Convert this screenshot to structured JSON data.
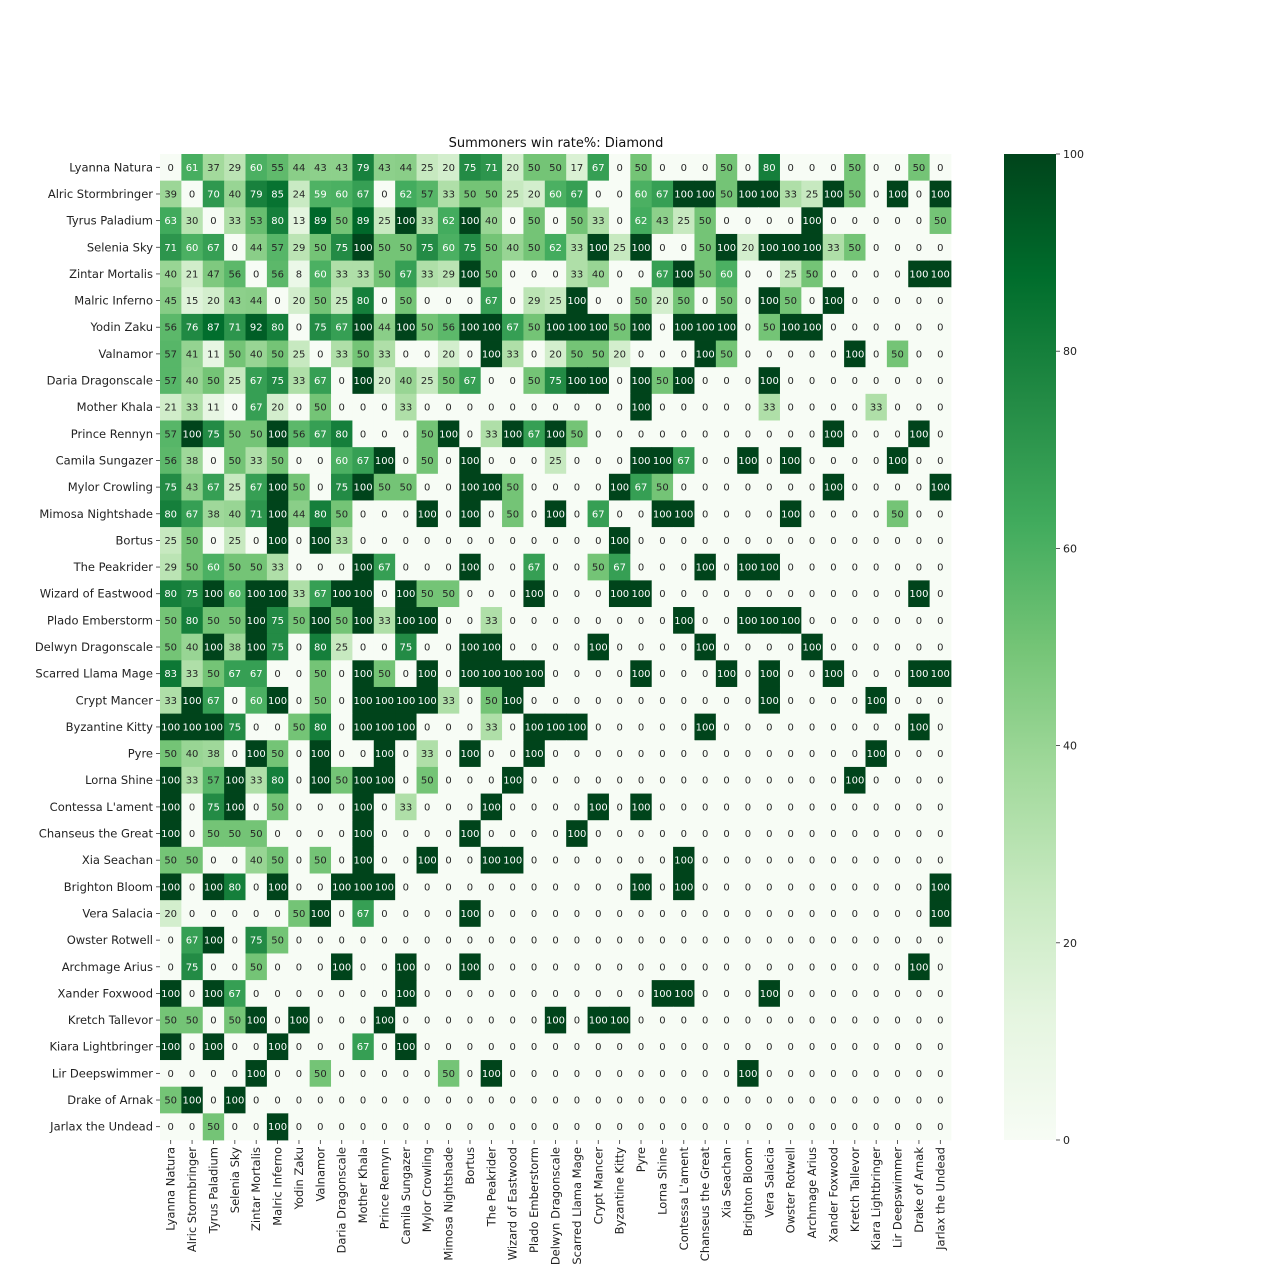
{
  "chart_data": {
    "type": "heatmap",
    "title": "Summoners win rate%: Diamond",
    "xlabel": "",
    "ylabel": "",
    "color_scale": {
      "min": 0,
      "max": 100,
      "low_color": "#f7fcf5",
      "high_color": "#00441b",
      "ticks": [
        0,
        20,
        40,
        60,
        80,
        100
      ]
    },
    "labels": [
      "Lyanna Natura",
      "Alric Stormbringer",
      "Tyrus Paladium",
      "Selenia Sky",
      "Zintar Mortalis",
      "Malric Inferno",
      "Yodin Zaku",
      "Valnamor",
      "Daria Dragonscale",
      "Mother Khala",
      "Prince Rennyn",
      "Camila Sungazer",
      "Mylor Crowling",
      "Mimosa Nightshade",
      "Bortus",
      "The Peakrider",
      "Wizard of Eastwood",
      "Plado Emberstorm",
      "Delwyn Dragonscale",
      "Scarred Llama Mage",
      "Crypt Mancer",
      "Byzantine Kitty",
      "Pyre",
      "Lorna Shine",
      "Contessa L'ament",
      "Chanseus the Great",
      "Xia Seachan",
      "Brighton Bloom",
      "Vera Salacia",
      "Owster Rotwell",
      "Archmage Arius",
      "Xander Foxwood",
      "Kretch Tallevor",
      "Kiara Lightbringer",
      "Lir Deepswimmer",
      "Drake of Arnak",
      "Jarlax the Undead"
    ],
    "values": [
      [
        0,
        61,
        37,
        29,
        60,
        55,
        44,
        43,
        43,
        79,
        43,
        44,
        25,
        20,
        75,
        71,
        20,
        50,
        50,
        17,
        67,
        0,
        50,
        0,
        0,
        0,
        50,
        0,
        80,
        0,
        0,
        0,
        50,
        0,
        0,
        50,
        0
      ],
      [
        39,
        0,
        70,
        40,
        79,
        85,
        24,
        59,
        60,
        67,
        0,
        62,
        57,
        33,
        50,
        50,
        25,
        20,
        60,
        67,
        0,
        0,
        60,
        67,
        100,
        100,
        50,
        100,
        100,
        33,
        25,
        100,
        50,
        0,
        100,
        0,
        100
      ],
      [
        63,
        30,
        0,
        33,
        53,
        80,
        13,
        89,
        50,
        89,
        25,
        100,
        33,
        62,
        100,
        40,
        0,
        50,
        0,
        50,
        33,
        0,
        62,
        43,
        25,
        50,
        0,
        0,
        0,
        0,
        100,
        0,
        0,
        0,
        0,
        0,
        50
      ],
      [
        71,
        60,
        67,
        0,
        44,
        57,
        29,
        50,
        75,
        100,
        50,
        50,
        75,
        60,
        75,
        50,
        40,
        50,
        62,
        33,
        100,
        25,
        100,
        0,
        0,
        50,
        100,
        20,
        100,
        100,
        100,
        33,
        50,
        0,
        0,
        0,
        0
      ],
      [
        40,
        21,
        47,
        56,
        0,
        56,
        8,
        60,
        33,
        33,
        50,
        67,
        33,
        29,
        100,
        50,
        0,
        0,
        0,
        33,
        40,
        0,
        0,
        67,
        100,
        50,
        60,
        0,
        0,
        25,
        50,
        0,
        0,
        0,
        0,
        100,
        100
      ],
      [
        45,
        15,
        20,
        43,
        44,
        0,
        20,
        50,
        25,
        80,
        0,
        50,
        0,
        0,
        0,
        67,
        0,
        29,
        25,
        100,
        0,
        0,
        50,
        20,
        50,
        0,
        50,
        0,
        100,
        50,
        0,
        100,
        0,
        0,
        0,
        0,
        0
      ],
      [
        56,
        76,
        87,
        71,
        92,
        80,
        0,
        75,
        67,
        100,
        44,
        100,
        50,
        56,
        100,
        100,
        67,
        50,
        100,
        100,
        100,
        50,
        100,
        0,
        100,
        100,
        100,
        0,
        50,
        100,
        100,
        0,
        0,
        0,
        0,
        0,
        0
      ],
      [
        57,
        41,
        11,
        50,
        40,
        50,
        25,
        0,
        33,
        50,
        33,
        0,
        0,
        20,
        0,
        100,
        33,
        0,
        20,
        50,
        50,
        20,
        0,
        0,
        0,
        100,
        50,
        0,
        0,
        0,
        0,
        0,
        100,
        0,
        50,
        0,
        0
      ],
      [
        57,
        40,
        50,
        25,
        67,
        75,
        33,
        67,
        0,
        100,
        20,
        40,
        25,
        50,
        67,
        0,
        0,
        50,
        75,
        100,
        100,
        0,
        100,
        50,
        100,
        0,
        0,
        0,
        100,
        0,
        0,
        0,
        0,
        0,
        0,
        0,
        0
      ],
      [
        21,
        33,
        11,
        0,
        67,
        20,
        0,
        50,
        0,
        0,
        0,
        33,
        0,
        0,
        0,
        0,
        0,
        0,
        0,
        0,
        0,
        0,
        100,
        0,
        0,
        0,
        0,
        0,
        33,
        0,
        0,
        0,
        0,
        33,
        0,
        0,
        0
      ],
      [
        57,
        100,
        75,
        50,
        50,
        100,
        56,
        67,
        80,
        0,
        0,
        0,
        50,
        100,
        0,
        33,
        100,
        67,
        100,
        50,
        0,
        0,
        0,
        0,
        0,
        0,
        0,
        0,
        0,
        0,
        0,
        100,
        0,
        0,
        0,
        100,
        0
      ],
      [
        56,
        38,
        0,
        50,
        33,
        50,
        0,
        0,
        60,
        67,
        100,
        0,
        50,
        0,
        100,
        0,
        0,
        0,
        25,
        0,
        0,
        0,
        100,
        100,
        67,
        0,
        0,
        100,
        0,
        100,
        0,
        0,
        0,
        0,
        100,
        0,
        0
      ],
      [
        75,
        43,
        67,
        25,
        67,
        100,
        50,
        0,
        75,
        100,
        50,
        50,
        0,
        0,
        100,
        100,
        50,
        0,
        0,
        0,
        0,
        100,
        67,
        50,
        0,
        0,
        0,
        0,
        0,
        0,
        0,
        100,
        0,
        0,
        0,
        0,
        100
      ],
      [
        80,
        67,
        38,
        40,
        71,
        100,
        44,
        80,
        50,
        0,
        0,
        0,
        100,
        0,
        100,
        0,
        50,
        0,
        100,
        0,
        67,
        0,
        0,
        100,
        100,
        0,
        0,
        0,
        0,
        100,
        0,
        0,
        0,
        0,
        50,
        0,
        0
      ],
      [
        25,
        50,
        0,
        25,
        0,
        100,
        0,
        100,
        33,
        0,
        0,
        0,
        0,
        0,
        0,
        0,
        0,
        0,
        0,
        0,
        0,
        100,
        0,
        0,
        0,
        0,
        0,
        0,
        0,
        0,
        0,
        0,
        0,
        0,
        0,
        0,
        0
      ],
      [
        29,
        50,
        60,
        50,
        50,
        33,
        0,
        0,
        0,
        100,
        67,
        0,
        0,
        0,
        100,
        0,
        0,
        67,
        0,
        0,
        50,
        67,
        0,
        0,
        0,
        100,
        0,
        100,
        100,
        0,
        0,
        0,
        0,
        0,
        0,
        0,
        0
      ],
      [
        80,
        75,
        100,
        60,
        100,
        100,
        33,
        67,
        100,
        100,
        0,
        100,
        50,
        50,
        0,
        0,
        0,
        100,
        0,
        0,
        0,
        100,
        100,
        0,
        0,
        0,
        0,
        0,
        0,
        0,
        0,
        0,
        0,
        0,
        0,
        100,
        0
      ],
      [
        50,
        80,
        50,
        50,
        100,
        75,
        50,
        100,
        50,
        100,
        33,
        100,
        100,
        0,
        0,
        33,
        0,
        0,
        0,
        0,
        0,
        0,
        0,
        0,
        100,
        0,
        0,
        100,
        100,
        100,
        0,
        0,
        0,
        0,
        0,
        0,
        0
      ],
      [
        50,
        40,
        100,
        38,
        100,
        75,
        0,
        80,
        25,
        0,
        0,
        75,
        0,
        0,
        100,
        100,
        0,
        0,
        0,
        0,
        100,
        0,
        0,
        0,
        0,
        100,
        0,
        0,
        0,
        0,
        100,
        0,
        0,
        0,
        0,
        0,
        0
      ],
      [
        83,
        33,
        50,
        67,
        67,
        0,
        0,
        50,
        0,
        100,
        50,
        0,
        100,
        0,
        100,
        100,
        100,
        100,
        0,
        0,
        0,
        0,
        100,
        0,
        0,
        0,
        100,
        0,
        100,
        0,
        0,
        100,
        0,
        0,
        0,
        100,
        100
      ],
      [
        33,
        100,
        67,
        0,
        60,
        100,
        0,
        50,
        0,
        100,
        100,
        100,
        100,
        33,
        0,
        50,
        100,
        0,
        0,
        0,
        0,
        0,
        0,
        0,
        0,
        0,
        0,
        0,
        100,
        0,
        0,
        0,
        0,
        100,
        0,
        0,
        0
      ],
      [
        100,
        100,
        100,
        75,
        0,
        0,
        50,
        80,
        0,
        100,
        100,
        100,
        0,
        0,
        0,
        33,
        0,
        100,
        100,
        100,
        0,
        0,
        0,
        0,
        0,
        100,
        0,
        0,
        0,
        0,
        0,
        0,
        0,
        0,
        0,
        100,
        0
      ],
      [
        50,
        40,
        38,
        0,
        100,
        50,
        0,
        100,
        0,
        0,
        100,
        0,
        33,
        0,
        100,
        0,
        0,
        100,
        0,
        0,
        0,
        0,
        0,
        0,
        0,
        0,
        0,
        0,
        0,
        0,
        0,
        0,
        0,
        100,
        0,
        0,
        0
      ],
      [
        100,
        33,
        57,
        100,
        33,
        80,
        0,
        100,
        50,
        100,
        100,
        0,
        50,
        0,
        0,
        0,
        100,
        0,
        0,
        0,
        0,
        0,
        0,
        0,
        0,
        0,
        0,
        0,
        0,
        0,
        0,
        0,
        100,
        0,
        0,
        0,
        0
      ],
      [
        100,
        0,
        75,
        100,
        0,
        50,
        0,
        0,
        0,
        100,
        0,
        33,
        0,
        0,
        0,
        100,
        0,
        0,
        0,
        0,
        100,
        0,
        100,
        0,
        0,
        0,
        0,
        0,
        0,
        0,
        0,
        0,
        0,
        0,
        0,
        0,
        0
      ],
      [
        100,
        0,
        50,
        50,
        50,
        0,
        0,
        0,
        0,
        100,
        0,
        0,
        0,
        0,
        100,
        0,
        0,
        0,
        0,
        100,
        0,
        0,
        0,
        0,
        0,
        0,
        0,
        0,
        0,
        0,
        0,
        0,
        0,
        0,
        0,
        0,
        0
      ],
      [
        50,
        50,
        0,
        0,
        40,
        50,
        0,
        50,
        0,
        100,
        0,
        0,
        100,
        0,
        0,
        100,
        100,
        0,
        0,
        0,
        0,
        0,
        0,
        0,
        100,
        0,
        0,
        0,
        0,
        0,
        0,
        0,
        0,
        0,
        0,
        0,
        0
      ],
      [
        100,
        0,
        100,
        80,
        0,
        100,
        0,
        0,
        100,
        100,
        100,
        0,
        0,
        0,
        0,
        0,
        0,
        0,
        0,
        0,
        0,
        0,
        100,
        0,
        100,
        0,
        0,
        0,
        0,
        0,
        0,
        0,
        0,
        0,
        0,
        0,
        100
      ],
      [
        20,
        0,
        0,
        0,
        0,
        0,
        50,
        100,
        0,
        67,
        0,
        0,
        0,
        0,
        100,
        0,
        0,
        0,
        0,
        0,
        0,
        0,
        0,
        0,
        0,
        0,
        0,
        0,
        0,
        0,
        0,
        0,
        0,
        0,
        0,
        0,
        100
      ],
      [
        0,
        67,
        100,
        0,
        75,
        50,
        0,
        0,
        0,
        0,
        0,
        0,
        0,
        0,
        0,
        0,
        0,
        0,
        0,
        0,
        0,
        0,
        0,
        0,
        0,
        0,
        0,
        0,
        0,
        0,
        0,
        0,
        0,
        0,
        0,
        0,
        0
      ],
      [
        0,
        75,
        0,
        0,
        50,
        0,
        0,
        0,
        100,
        0,
        0,
        100,
        0,
        0,
        100,
        0,
        0,
        0,
        0,
        0,
        0,
        0,
        0,
        0,
        0,
        0,
        0,
        0,
        0,
        0,
        0,
        0,
        0,
        0,
        0,
        100,
        0
      ],
      [
        100,
        0,
        100,
        67,
        0,
        0,
        0,
        0,
        0,
        0,
        0,
        100,
        0,
        0,
        0,
        0,
        0,
        0,
        0,
        0,
        0,
        0,
        0,
        100,
        100,
        0,
        0,
        0,
        100,
        0,
        0,
        0,
        0,
        0,
        0,
        0,
        0
      ],
      [
        50,
        50,
        0,
        50,
        100,
        0,
        100,
        0,
        0,
        0,
        100,
        0,
        0,
        0,
        0,
        0,
        0,
        0,
        100,
        0,
        100,
        100,
        0,
        0,
        0,
        0,
        0,
        0,
        0,
        0,
        0,
        0,
        0,
        0,
        0,
        0,
        0
      ],
      [
        100,
        0,
        100,
        0,
        0,
        100,
        0,
        0,
        0,
        67,
        0,
        100,
        0,
        0,
        0,
        0,
        0,
        0,
        0,
        0,
        0,
        0,
        0,
        0,
        0,
        0,
        0,
        0,
        0,
        0,
        0,
        0,
        0,
        0,
        0,
        0,
        0
      ],
      [
        0,
        0,
        0,
        0,
        100,
        0,
        0,
        50,
        0,
        0,
        0,
        0,
        0,
        50,
        0,
        100,
        0,
        0,
        0,
        0,
        0,
        0,
        0,
        0,
        0,
        0,
        0,
        100,
        0,
        0,
        0,
        0,
        0,
        0,
        0,
        0,
        0
      ],
      [
        50,
        100,
        0,
        100,
        0,
        0,
        0,
        0,
        0,
        0,
        0,
        0,
        0,
        0,
        0,
        0,
        0,
        0,
        0,
        0,
        0,
        0,
        0,
        0,
        0,
        0,
        0,
        0,
        0,
        0,
        0,
        0,
        0,
        0,
        0,
        0,
        0
      ],
      [
        0,
        0,
        50,
        0,
        0,
        100,
        0,
        0,
        0,
        0,
        0,
        0,
        0,
        0,
        0,
        0,
        0,
        0,
        0,
        0,
        0,
        0,
        0,
        0,
        0,
        0,
        0,
        0,
        0,
        0,
        0,
        0,
        0,
        0,
        0,
        0,
        0
      ]
    ]
  }
}
